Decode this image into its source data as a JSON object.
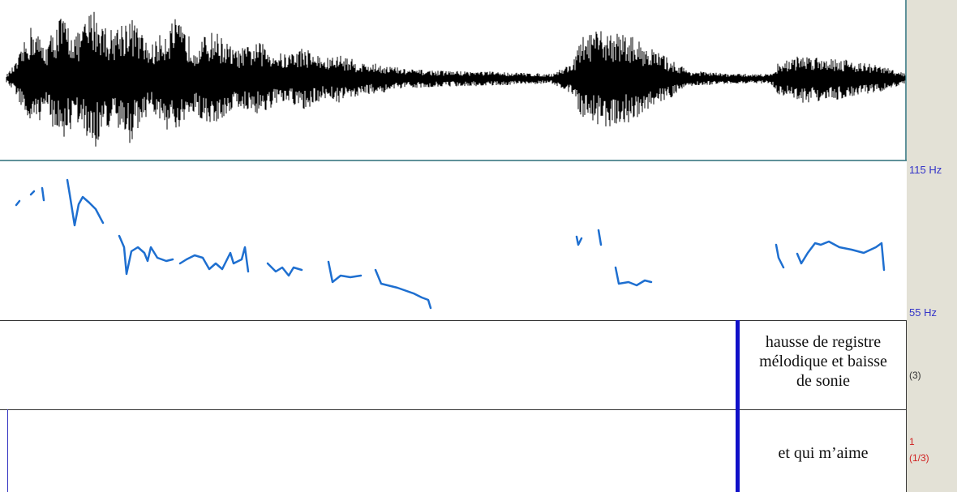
{
  "pitch_axis": {
    "top_label": "115 Hz",
    "bottom_label": "55 Hz"
  },
  "tiers": [
    {
      "interval_text": [
        "hausse de registre",
        "mélodique et baisse",
        "de sonie"
      ],
      "count_label": "(3)"
    },
    {
      "interval_text": [
        "et qui m’aime"
      ],
      "number_label": "1",
      "count_label": "(1/3)"
    }
  ]
}
